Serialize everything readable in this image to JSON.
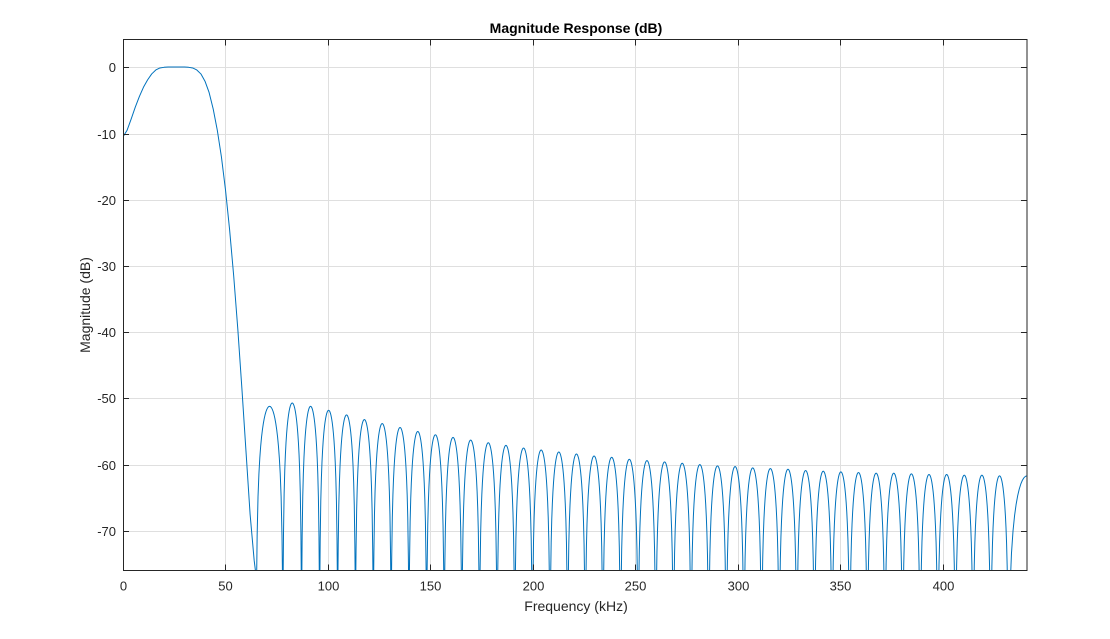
{
  "chart_data": {
    "type": "line",
    "title": "Magnitude Response (dB)",
    "xlabel": "Frequency (kHz)",
    "ylabel": "Magnitude (dB)",
    "xlim": [
      0,
      441
    ],
    "ylim": [
      -76,
      4.2
    ],
    "xticks": [
      0,
      50,
      100,
      150,
      200,
      250,
      300,
      350,
      400
    ],
    "yticks": [
      0,
      -10,
      -20,
      -30,
      -40,
      -50,
      -60,
      -70
    ],
    "grid": true,
    "series": [
      {
        "color": "#0072bd",
        "passband": {
          "x": [
            0,
            2,
            4,
            6,
            8,
            10,
            12,
            14,
            16,
            18,
            20,
            22,
            24,
            26,
            28,
            30,
            32,
            34,
            36,
            38,
            40,
            42,
            44,
            46,
            48,
            50,
            52,
            54,
            56,
            58,
            60,
            62,
            64,
            65
          ],
          "y": [
            -10.5,
            -9.5,
            -7.8,
            -6.0,
            -4.4,
            -3.0,
            -1.9,
            -1.0,
            -0.4,
            -0.1,
            0,
            0.05,
            0.05,
            0.05,
            0.05,
            0.05,
            0.0,
            -0.1,
            -0.4,
            -1.0,
            -2.1,
            -3.8,
            -6.3,
            -9.5,
            -13.5,
            -18.5,
            -24.5,
            -31.5,
            -39.5,
            -48.5,
            -58.0,
            -67.5,
            -74.5,
            -77
          ]
        },
        "sidelobes": {
          "peaks_x": [
            73.3,
            82.6,
            91.5,
            100.3,
            109.1,
            117.8,
            126.5,
            135.2,
            143.8,
            152.4,
            161.0,
            169.6,
            178.2,
            186.8,
            195.4,
            204.0,
            212.6,
            221.2,
            229.8,
            238.4,
            247.0,
            255.6,
            264.2,
            272.8,
            281.4,
            290.0,
            298.6,
            307.2,
            315.8,
            324.4,
            333.0,
            341.6,
            350.2,
            358.8,
            367.4,
            376.0,
            384.6,
            393.2,
            401.8,
            410.4,
            419.0,
            427.6
          ],
          "peaks_y": [
            -51.2,
            -50.7,
            -51.2,
            -51.8,
            -52.5,
            -53.2,
            -53.8,
            -54.4,
            -55.0,
            -55.5,
            -55.9,
            -56.3,
            -56.7,
            -57.1,
            -57.5,
            -57.8,
            -58.1,
            -58.4,
            -58.7,
            -58.9,
            -59.2,
            -59.4,
            -59.6,
            -59.8,
            -60.0,
            -60.2,
            -60.3,
            -60.5,
            -60.6,
            -60.7,
            -60.9,
            -61.0,
            -61.1,
            -61.2,
            -61.3,
            -61.3,
            -61.4,
            -61.5,
            -61.5,
            -61.6,
            -61.6,
            -61.7
          ],
          "nulls_x": [
            65.0,
            78.0,
            87.1,
            95.9,
            104.7,
            113.4,
            122.1,
            130.8,
            139.5,
            148.1,
            156.7,
            165.3,
            173.9,
            182.5,
            191.1,
            199.7,
            208.3,
            216.9,
            225.5,
            234.1,
            242.7,
            251.3,
            259.9,
            268.5,
            277.1,
            285.7,
            294.3,
            302.9,
            311.5,
            320.1,
            328.7,
            337.3,
            345.9,
            354.5,
            363.1,
            371.7,
            380.3,
            388.9,
            397.5,
            406.1,
            414.7,
            423.3,
            431.9
          ],
          "end": {
            "x": 441,
            "y": -61.7
          }
        }
      }
    ]
  }
}
